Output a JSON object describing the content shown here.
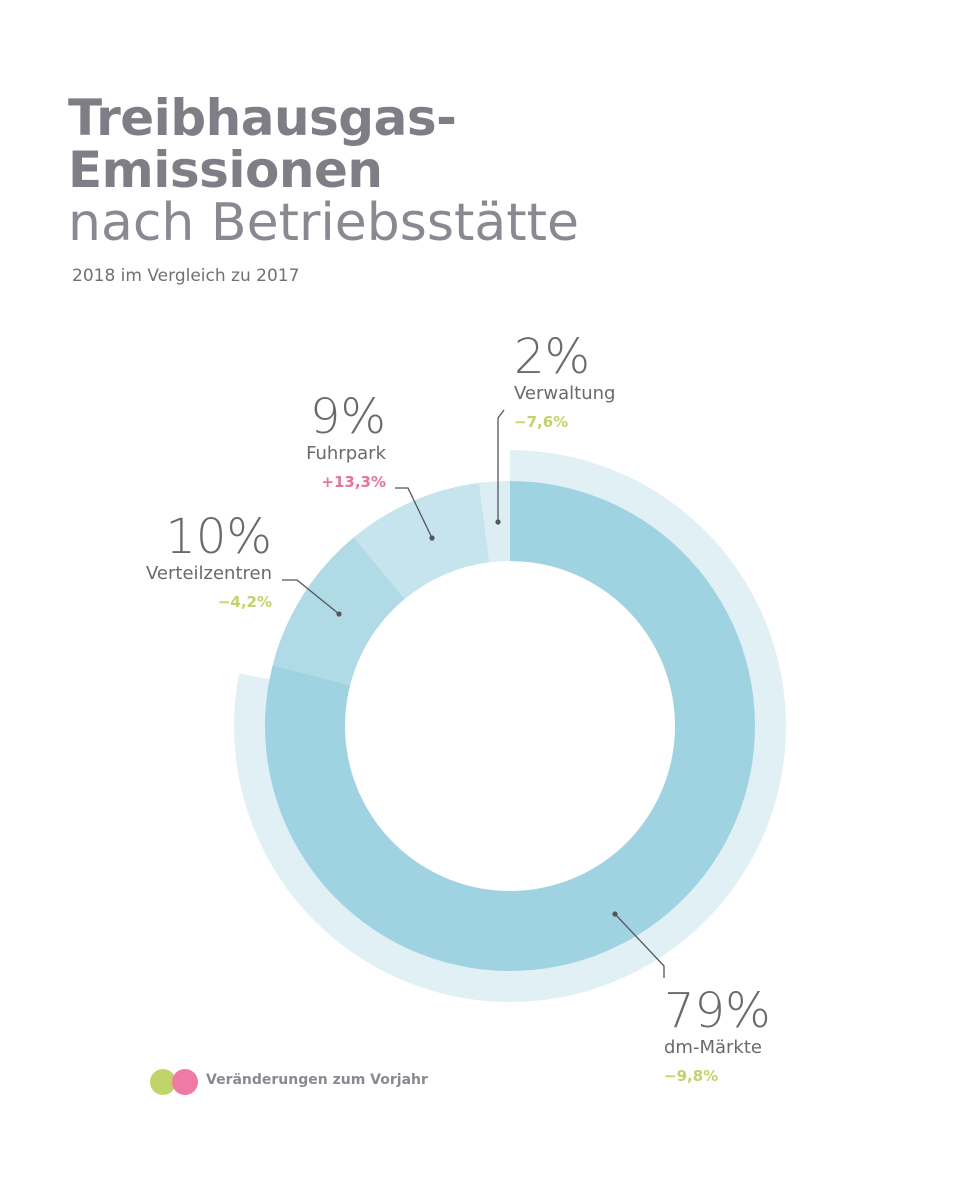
{
  "header": {
    "title_line1": "Treibhausgas-",
    "title_line2": "Emissionen",
    "title_line3": "nach Betriebsstätte",
    "subtitle": "2018 im Vergleich zu 2017"
  },
  "legend": {
    "label": "Veränderungen zum Vorjahr",
    "colors": {
      "decrease": "#c0d46a",
      "increase": "#f07aa6"
    }
  },
  "segments": [
    {
      "name": "dm-Märkte",
      "share": "79%",
      "change": "−9,8%",
      "direction": "decrease"
    },
    {
      "name": "Verteilzentren",
      "share": "10%",
      "change": "−4,2%",
      "direction": "decrease"
    },
    {
      "name": "Fuhrpark",
      "share": "9%",
      "change": "+13,3%",
      "direction": "increase"
    },
    {
      "name": "Verwaltung",
      "share": "2%",
      "change": "−7,6%",
      "direction": "decrease"
    }
  ],
  "chart_data": {
    "type": "pie",
    "subtype": "donut",
    "title": "Treibhausgas-Emissionen nach Betriebsstätte",
    "subtitle": "2018 im Vergleich zu 2017",
    "categories": [
      "dm-Märkte",
      "Verteilzentren",
      "Fuhrpark",
      "Verwaltung"
    ],
    "values": [
      79,
      10,
      9,
      2
    ],
    "unit": "%",
    "change_vs_previous_year": [
      -9.8,
      -4.2,
      13.3,
      -7.6
    ],
    "colors": [
      "#a0d3e1",
      "#b0dae6",
      "#c6e4ee",
      "#dceef4"
    ],
    "background_ring_color": "#e1f0f5",
    "legend": {
      "label": "Veränderungen zum Vorjahr",
      "position": "bottom-left",
      "entries": [
        "decrease (green)",
        "increase (pink)"
      ]
    }
  }
}
